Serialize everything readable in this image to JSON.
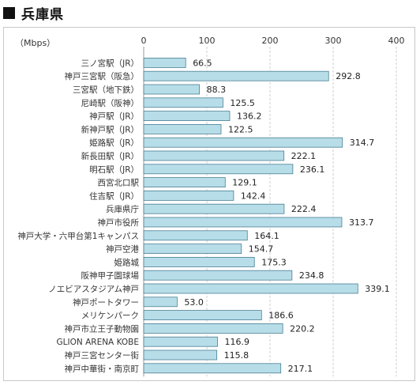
{
  "header": {
    "title": "兵庫県",
    "icon": "square-icon"
  },
  "chart_data": {
    "type": "bar",
    "orientation": "horizontal",
    "unit_label": "（Mbps）",
    "xlim": [
      0,
      400
    ],
    "ticks": [
      0,
      100,
      200,
      300,
      400
    ],
    "grid": true,
    "bar_color": "#b7dde8",
    "bar_border_color": "#4a7f93",
    "categories": [
      "三ノ宮駅（JR）",
      "神戸三宮駅（阪急）",
      "三宮駅（地下鉄）",
      "尼崎駅（阪神）",
      "神戸駅（JR）",
      "新神戸駅（JR）",
      "姫路駅（JR）",
      "新長田駅（JR）",
      "明石駅（JR）",
      "西宮北口駅",
      "住吉駅（JR）",
      "兵庫県庁",
      "神戸市役所",
      "神戸大学・六甲台第1キャンパス",
      "神戸空港",
      "姫路城",
      "阪神甲子園球場",
      "ノエビアスタジアム神戸",
      "神戸ポートタワー",
      "メリケンパーク",
      "神戸市立王子動物園",
      "GLION ARENA KOBE",
      "神戸三宮センター街",
      "神戸中華街・南京町"
    ],
    "values": [
      66.5,
      292.8,
      88.3,
      125.5,
      136.2,
      122.5,
      314.7,
      222.1,
      236.1,
      129.1,
      142.4,
      222.4,
      313.7,
      164.1,
      154.7,
      175.3,
      234.8,
      339.1,
      53.0,
      186.6,
      220.2,
      116.9,
      115.8,
      217.1
    ],
    "value_labels": [
      "66.5",
      "292.8",
      "88.3",
      "125.5",
      "136.2",
      "122.5",
      "314.7",
      "222.1",
      "236.1",
      "129.1",
      "142.4",
      "222.4",
      "313.7",
      "164.1",
      "154.7",
      "175.3",
      "234.8",
      "339.1",
      "53.0",
      "186.6",
      "220.2",
      "116.9",
      "115.8",
      "217.1"
    ]
  }
}
